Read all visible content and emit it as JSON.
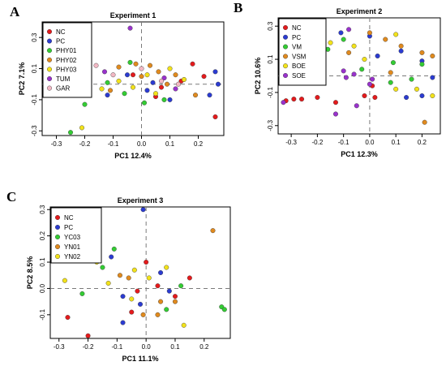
{
  "chart_data": [
    {
      "type": "scatter",
      "panel_letter": "A",
      "title": "Experiment 1",
      "xlabel": "PC1 12.4%",
      "ylabel": "PC2 7.1%",
      "xlim": [
        -0.35,
        0.29
      ],
      "ylim": [
        -0.33,
        0.4
      ],
      "xticks": [
        -0.3,
        -0.2,
        -0.1,
        0.0,
        0.1,
        0.2
      ],
      "xtick_labels": [
        "-0.3",
        "-0.2",
        "-0.1",
        "0.0",
        "0.1",
        "0.2"
      ],
      "yticks": [
        -0.3,
        -0.1,
        0.1,
        0.3
      ],
      "ytick_labels": [
        "-0.3",
        "-0.1",
        "0.1",
        "0.3"
      ],
      "grid": false,
      "reference_lines": {
        "x": 0,
        "y": 0
      },
      "legend_position": "top-left",
      "series": [
        {
          "name": "NC",
          "color": "#e41a1c",
          "points": [
            [
              0.18,
              0.13
            ],
            [
              0.22,
              0.05
            ],
            [
              -0.03,
              0.06
            ],
            [
              0.14,
              0.02
            ],
            [
              0.07,
              -0.02
            ],
            [
              0.26,
              -0.21
            ],
            [
              0.05,
              -0.08
            ]
          ]
        },
        {
          "name": "PC",
          "color": "#2b3bd1",
          "points": [
            [
              0.26,
              0.08
            ],
            [
              0.27,
              0.0
            ],
            [
              0.24,
              -0.07
            ],
            [
              -0.12,
              -0.07
            ],
            [
              0.02,
              -0.04
            ],
            [
              0.1,
              -0.1
            ],
            [
              -0.05,
              0.06
            ],
            [
              0.04,
              0.01
            ]
          ]
        },
        {
          "name": "PHY01",
          "color": "#33cc33",
          "points": [
            [
              -0.25,
              -0.31
            ],
            [
              -0.2,
              -0.13
            ],
            [
              -0.12,
              0.01
            ],
            [
              -0.04,
              0.14
            ],
            [
              0.01,
              -0.12
            ],
            [
              -0.06,
              -0.06
            ],
            [
              0.08,
              -0.1
            ]
          ]
        },
        {
          "name": "PHY02",
          "color": "#e08a1e",
          "points": [
            [
              -0.08,
              0.11
            ],
            [
              -0.02,
              0.13
            ],
            [
              0.03,
              0.12
            ],
            [
              0.06,
              0.08
            ],
            [
              0.12,
              0.06
            ],
            [
              0.19,
              -0.07
            ],
            [
              -0.11,
              -0.04
            ],
            [
              0.0,
              0.05
            ],
            [
              0.09,
              0.0
            ]
          ]
        },
        {
          "name": "PHY03",
          "color": "#f2e21a",
          "points": [
            [
              -0.21,
              -0.28
            ],
            [
              -0.14,
              -0.03
            ],
            [
              -0.08,
              0.02
            ],
            [
              0.02,
              0.06
            ],
            [
              0.1,
              0.1
            ],
            [
              0.15,
              0.03
            ],
            [
              -0.03,
              -0.02
            ],
            [
              0.05,
              -0.06
            ]
          ]
        },
        {
          "name": "TUM",
          "color": "#9932cc",
          "points": [
            [
              -0.04,
              0.36
            ],
            [
              -0.13,
              0.08
            ],
            [
              0.08,
              0.04
            ],
            [
              0.12,
              -0.03
            ]
          ]
        },
        {
          "name": "GAR",
          "color": "#f2b8c4",
          "points": [
            [
              -0.16,
              0.12
            ],
            [
              -0.1,
              0.06
            ],
            [
              0.0,
              0.1
            ],
            [
              0.07,
              0.02
            ],
            [
              -0.22,
              -0.03
            ],
            [
              0.13,
              0.0
            ]
          ]
        }
      ]
    },
    {
      "type": "scatter",
      "panel_letter": "B",
      "title": "Experiment 2",
      "xlabel": "PC1 12.3%",
      "ylabel": "PC2 10.6%",
      "xlim": [
        -0.35,
        0.27
      ],
      "ylim": [
        -0.35,
        0.35
      ],
      "xticks": [
        -0.3,
        -0.2,
        -0.1,
        0.0,
        0.1,
        0.2
      ],
      "xtick_labels": [
        "-0.3",
        "-0.2",
        "-0.1",
        "0.0",
        "0.1",
        "0.2"
      ],
      "yticks": [
        -0.3,
        -0.1,
        0.1,
        0.3
      ],
      "ytick_labels": [
        "-0.3",
        "-0.1",
        "0.1",
        "0.3"
      ],
      "grid": false,
      "reference_lines": {
        "x": 0,
        "y": 0
      },
      "legend_position": "top-left",
      "series": [
        {
          "name": "NC",
          "color": "#e41a1c",
          "points": [
            [
              -0.32,
              -0.15
            ],
            [
              -0.29,
              -0.14
            ],
            [
              -0.26,
              -0.14
            ],
            [
              -0.2,
              -0.13
            ],
            [
              -0.13,
              -0.16
            ],
            [
              -0.02,
              -0.12
            ],
            [
              0.01,
              -0.06
            ],
            [
              0.02,
              -0.13
            ]
          ]
        },
        {
          "name": "PC",
          "color": "#2b3bd1",
          "points": [
            [
              -0.11,
              0.26
            ],
            [
              0.12,
              0.15
            ],
            [
              0.2,
              0.09
            ],
            [
              0.24,
              -0.01
            ],
            [
              0.2,
              -0.12
            ],
            [
              0.14,
              -0.13
            ],
            [
              0.03,
              0.12
            ],
            [
              0.0,
              0.24
            ]
          ]
        },
        {
          "name": "VM",
          "color": "#33cc33",
          "points": [
            [
              -0.16,
              0.16
            ],
            [
              -0.1,
              0.22
            ],
            [
              0.09,
              0.08
            ],
            [
              0.16,
              -0.02
            ],
            [
              0.2,
              0.07
            ],
            [
              -0.03,
              0.04
            ],
            [
              0.08,
              -0.04
            ]
          ]
        },
        {
          "name": "VSM",
          "color": "#e08a1e",
          "points": [
            [
              0.0,
              0.26
            ],
            [
              0.06,
              0.22
            ],
            [
              0.12,
              0.18
            ],
            [
              0.2,
              0.14
            ],
            [
              0.24,
              0.12
            ],
            [
              0.21,
              -0.28
            ],
            [
              0.08,
              0.02
            ],
            [
              -0.08,
              0.14
            ]
          ]
        },
        {
          "name": "BOE",
          "color": "#f2e21a",
          "points": [
            [
              -0.15,
              0.2
            ],
            [
              -0.06,
              0.18
            ],
            [
              0.1,
              -0.08
            ],
            [
              0.18,
              -0.08
            ],
            [
              0.24,
              -0.12
            ],
            [
              0.1,
              0.25
            ],
            [
              -0.02,
              0.1
            ]
          ]
        },
        {
          "name": "SOE",
          "color": "#9932cc",
          "points": [
            [
              -0.33,
              -0.16
            ],
            [
              -0.08,
              0.28
            ],
            [
              -0.1,
              0.03
            ],
            [
              -0.09,
              -0.01
            ],
            [
              -0.06,
              0.01
            ],
            [
              0.01,
              -0.02
            ],
            [
              -0.13,
              -0.23
            ],
            [
              -0.05,
              -0.18
            ],
            [
              0.0,
              -0.05
            ]
          ]
        }
      ]
    },
    {
      "type": "scatter",
      "panel_letter": "C",
      "title": "Experiment 3",
      "xlabel": "PC1 11.1%",
      "ylabel": "PC2 8.5%",
      "xlim": [
        -0.33,
        0.29
      ],
      "ylim": [
        -0.19,
        0.31
      ],
      "xticks": [
        -0.3,
        -0.2,
        -0.1,
        0.0,
        0.1,
        0.2
      ],
      "xtick_labels": [
        "-0.3",
        "-0.2",
        "-0.1",
        "0.0",
        "0.1",
        "0.2"
      ],
      "yticks": [
        -0.1,
        0.0,
        0.1,
        0.2,
        0.3
      ],
      "ytick_labels": [
        "-0.1",
        "0.0",
        "0.1",
        "0.2",
        "0.3"
      ],
      "grid": false,
      "reference_lines": {
        "x": 0,
        "y": 0
      },
      "legend_position": "top-left",
      "series": [
        {
          "name": "NC",
          "color": "#e41a1c",
          "points": [
            [
              -0.27,
              -0.11
            ],
            [
              -0.2,
              -0.18
            ],
            [
              -0.05,
              -0.09
            ],
            [
              0.0,
              0.1
            ],
            [
              0.04,
              0.01
            ],
            [
              0.15,
              0.04
            ],
            [
              0.1,
              -0.03
            ],
            [
              -0.03,
              -0.01
            ]
          ]
        },
        {
          "name": "PC",
          "color": "#2b3bd1",
          "points": [
            [
              -0.01,
              0.3
            ],
            [
              -0.12,
              0.12
            ],
            [
              -0.08,
              -0.03
            ],
            [
              -0.08,
              -0.13
            ],
            [
              -0.02,
              -0.06
            ],
            [
              0.05,
              0.06
            ],
            [
              0.08,
              -0.01
            ]
          ]
        },
        {
          "name": "YC03",
          "color": "#33cc33",
          "points": [
            [
              -0.11,
              0.15
            ],
            [
              -0.22,
              -0.02
            ],
            [
              0.26,
              -0.07
            ],
            [
              0.27,
              -0.08
            ],
            [
              0.07,
              -0.08
            ],
            [
              -0.15,
              0.08
            ],
            [
              0.12,
              0.01
            ]
          ]
        },
        {
          "name": "YN01",
          "color": "#e08a1e",
          "points": [
            [
              0.23,
              0.22
            ],
            [
              -0.06,
              0.04
            ],
            [
              0.05,
              -0.05
            ],
            [
              -0.01,
              -0.1
            ],
            [
              0.1,
              -0.05
            ],
            [
              0.04,
              -0.1
            ],
            [
              -0.09,
              0.05
            ]
          ]
        },
        {
          "name": "YN02",
          "color": "#f2e21a",
          "points": [
            [
              -0.28,
              0.03
            ],
            [
              -0.13,
              0.02
            ],
            [
              -0.17,
              0.1
            ],
            [
              -0.04,
              0.07
            ],
            [
              0.07,
              0.08
            ],
            [
              0.13,
              -0.14
            ],
            [
              0.01,
              0.04
            ],
            [
              -0.05,
              -0.04
            ]
          ]
        }
      ]
    }
  ]
}
